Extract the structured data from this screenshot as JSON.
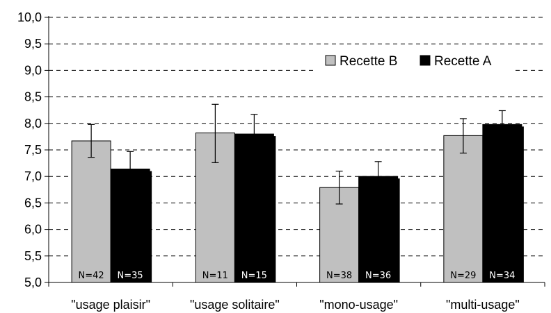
{
  "chart_data": {
    "type": "bar",
    "title": "",
    "xlabel": "",
    "ylabel": "",
    "ylim": [
      5.0,
      10.0
    ],
    "yticks": [
      "10,0",
      "9,5",
      "9,0",
      "8,5",
      "8,0",
      "7,5",
      "7,0",
      "6,5",
      "6,0",
      "5,5",
      "5,0"
    ],
    "ytick_values": [
      10.0,
      9.5,
      9.0,
      8.5,
      8.0,
      7.5,
      7.0,
      6.5,
      6.0,
      5.5,
      5.0
    ],
    "grid": true,
    "legend_position": "top-right",
    "categories": [
      "\"usage plaisir\"",
      "\"usage solitaire\"",
      "\"mono-usage\"",
      "\"multi-usage\""
    ],
    "series": [
      {
        "name": "Recette B",
        "color": "#c0c0c0",
        "values": [
          7.67,
          7.82,
          6.79,
          7.77
        ],
        "error_low": [
          7.36,
          7.26,
          6.48,
          7.44
        ],
        "error_high": [
          7.98,
          8.36,
          7.1,
          8.09
        ],
        "n_labels": [
          "N=42",
          "N=11",
          "N=38",
          "N=29"
        ]
      },
      {
        "name": "Recette A",
        "color": "#000000",
        "values": [
          7.14,
          7.8,
          7.0,
          7.98
        ],
        "error_low": [
          6.8,
          7.43,
          6.72,
          7.72
        ],
        "error_high": [
          7.47,
          8.17,
          7.28,
          8.24
        ],
        "n_labels": [
          "N=35",
          "N=15",
          "N=36",
          "N=34"
        ]
      }
    ]
  }
}
